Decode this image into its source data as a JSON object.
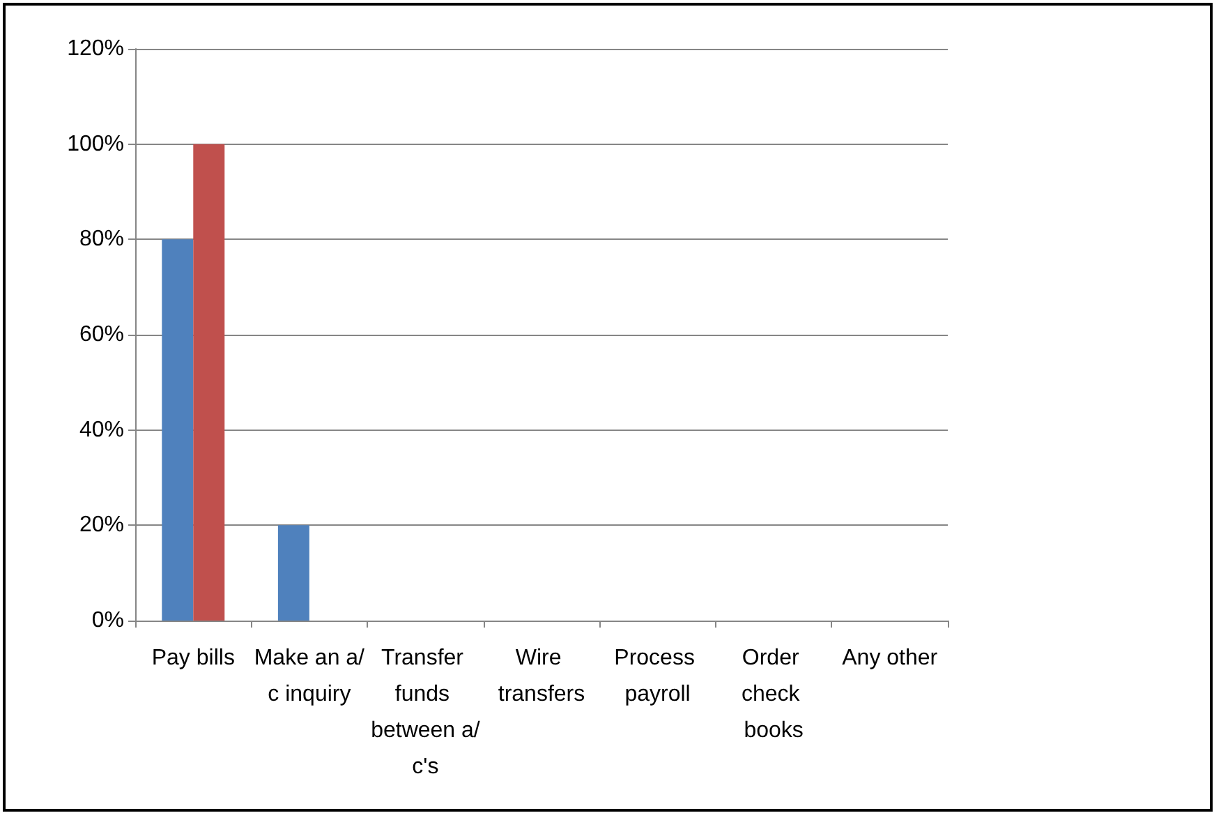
{
  "chart_data": {
    "type": "bar",
    "categories": [
      "Pay bills",
      "Make an a/c inquiry",
      "Transfer funds between a/c's",
      "Wire transfers",
      "Process payroll",
      "Order check books",
      "Any other"
    ],
    "series": [
      {
        "color": "#4f81bd",
        "values": [
          80,
          20,
          0,
          0,
          0,
          0,
          0
        ]
      },
      {
        "color": "#c0504d",
        "values": [
          100,
          0,
          0,
          0,
          0,
          0,
          0
        ]
      }
    ],
    "ylim": [
      0,
      120
    ],
    "yticks": [
      {
        "value": 0,
        "label": "0%"
      },
      {
        "value": 20,
        "label": "20%"
      },
      {
        "value": 40,
        "label": "40%"
      },
      {
        "value": 60,
        "label": "60%"
      },
      {
        "value": 80,
        "label": "80%"
      },
      {
        "value": 100,
        "label": "100%"
      },
      {
        "value": 120,
        "label": "120%"
      }
    ],
    "grid": "y"
  }
}
